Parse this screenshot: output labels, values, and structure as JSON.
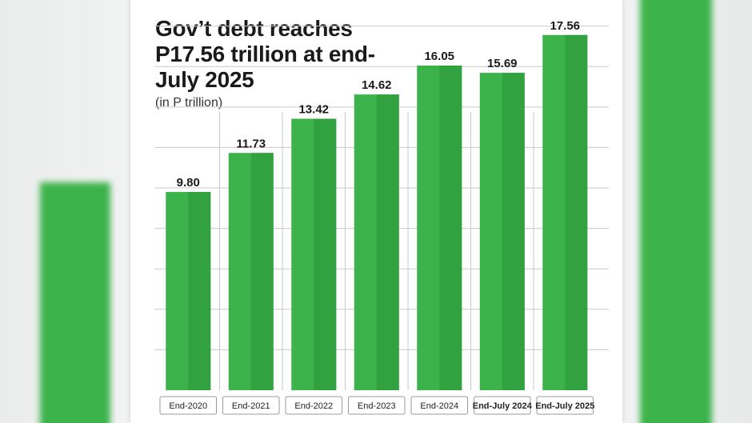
{
  "colors": {
    "bar": "#3cb34a",
    "bar_shade": "#31a23f",
    "grid": "#c9c9c9",
    "label_box": "#9a9a9a",
    "background": "#ffffff"
  },
  "chart_data": {
    "type": "bar",
    "title": "Gov’t debt reaches P17.56 trillion at end-July 2025",
    "unit_label": "(in P trillion)",
    "categories": [
      "End-2020",
      "End-2021",
      "End-2022",
      "End-2023",
      "End-2024",
      "End-July 2024",
      "End-July 2025"
    ],
    "bold_categories": [
      "End-July 2024",
      "End-July 2025"
    ],
    "values": [
      9.8,
      11.73,
      13.42,
      14.62,
      16.05,
      15.69,
      17.56
    ],
    "value_labels": [
      "9.80",
      "11.73",
      "13.42",
      "14.62",
      "16.05",
      "15.69",
      "17.56"
    ],
    "ylim": [
      0,
      18.5
    ],
    "grid": true,
    "legend": "none"
  }
}
